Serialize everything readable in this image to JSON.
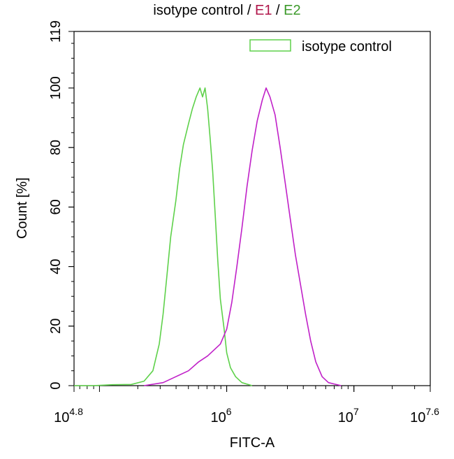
{
  "chart_data": {
    "type": "line",
    "title_parts": [
      {
        "text": "isotype control",
        "color": "#000000"
      },
      {
        "text": " / ",
        "color": "#000000"
      },
      {
        "text": "E1",
        "color": "#b0154a"
      },
      {
        "text": " / ",
        "color": "#000000"
      },
      {
        "text": "E2",
        "color": "#3c9a2a"
      }
    ],
    "xlabel": "FITC-A",
    "ylabel": "Count  [%]",
    "x_scale": "log10",
    "xlim": [
      4.8,
      7.6
    ],
    "ylim": [
      0,
      119
    ],
    "y_ticks": [
      0,
      20,
      40,
      60,
      80,
      100,
      119
    ],
    "x_ticks": [
      {
        "value": 4.8,
        "base": "10",
        "exp": "4.8"
      },
      {
        "value": 6,
        "base": "10",
        "exp": "6"
      },
      {
        "value": 7,
        "base": "10",
        "exp": "7"
      },
      {
        "value": 7.6,
        "base": "10",
        "exp": "7.6"
      }
    ],
    "legend": {
      "position": "top-right",
      "label": "isotype control",
      "color": "#5ed14a"
    },
    "series": [
      {
        "name": "isotype control",
        "color": "#5ed14a",
        "x": [
          4.8,
          4.95,
          5.1,
          5.25,
          5.35,
          5.42,
          5.47,
          5.5,
          5.53,
          5.56,
          5.6,
          5.63,
          5.66,
          5.7,
          5.73,
          5.76,
          5.79,
          5.81,
          5.83,
          5.85,
          5.87,
          5.89,
          5.91,
          5.93,
          5.95,
          5.98,
          6.0,
          6.03,
          6.07,
          6.12,
          6.2
        ],
        "y": [
          0,
          0,
          0.3,
          0.4,
          1.5,
          5,
          14,
          24,
          37,
          50,
          62,
          73,
          81,
          88,
          93,
          97,
          100,
          97,
          100,
          93,
          83,
          72,
          57,
          42,
          29,
          19,
          11,
          6,
          3,
          1,
          0
        ]
      },
      {
        "name": "",
        "color": "#c020c8",
        "x": [
          5.35,
          5.5,
          5.6,
          5.7,
          5.78,
          5.85,
          5.9,
          5.95,
          6.0,
          6.04,
          6.08,
          6.12,
          6.16,
          6.2,
          6.24,
          6.28,
          6.31,
          6.34,
          6.38,
          6.42,
          6.46,
          6.5,
          6.54,
          6.58,
          6.62,
          6.66,
          6.7,
          6.75,
          6.8,
          6.85,
          6.9
        ],
        "y": [
          0,
          1,
          3,
          5,
          8,
          10,
          12,
          14,
          19,
          28,
          40,
          53,
          67,
          79,
          89,
          96,
          100,
          97,
          91,
          80,
          68,
          56,
          44,
          34,
          24,
          15,
          8,
          3,
          1,
          0.5,
          0
        ]
      }
    ]
  }
}
